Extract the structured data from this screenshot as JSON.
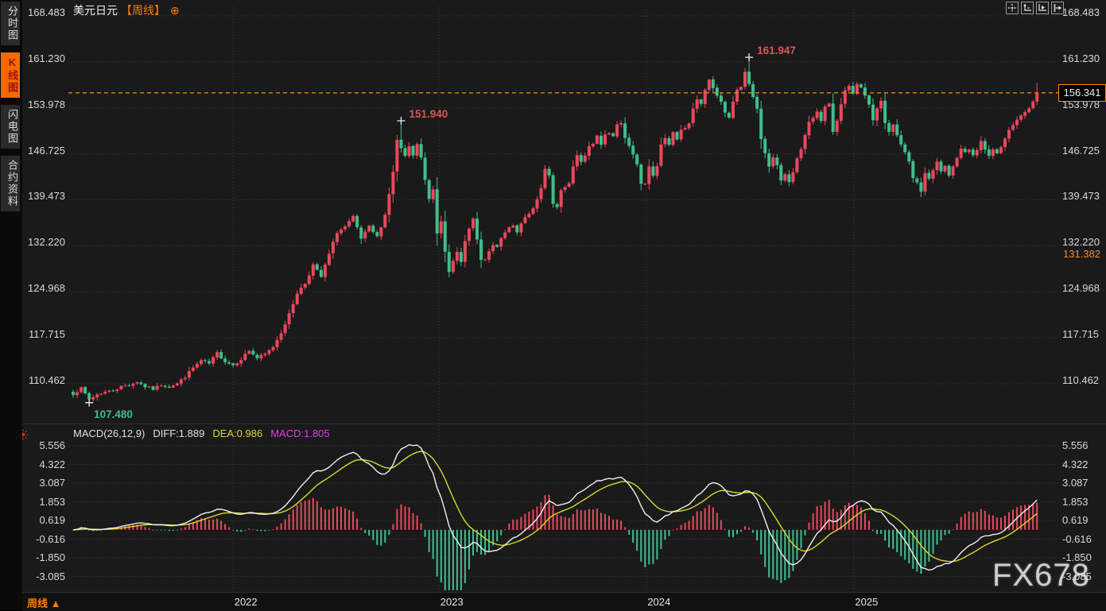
{
  "header": {
    "symbol": "美元日元",
    "period_tag": "【周线】",
    "add_icon": "⊕"
  },
  "sidebar": {
    "items": [
      {
        "key": "time-chart",
        "label": "分时图",
        "active": false
      },
      {
        "key": "candle-chart",
        "label": "K线图",
        "active": true
      },
      {
        "key": "flash-chart",
        "label": "闪电图",
        "active": false
      },
      {
        "key": "contract-info",
        "label": "合约资料",
        "active": false
      }
    ]
  },
  "toolbar": {
    "icons": [
      "crosshair-pan-icon",
      "axis-scale-up-icon",
      "axis-play-icon",
      "snap-latest-icon"
    ]
  },
  "footer": {
    "period_label": "周线",
    "arrow": "▲"
  },
  "watermark": "FX678",
  "live_dot_icon": "red-flash-marker",
  "macd_header": {
    "name": "MACD(26,12,9)",
    "diff": "DIFF:1.889",
    "dea": "DEA:0.986",
    "macd": "MACD:1.805"
  },
  "price_line_label": "156.341",
  "reference_label": "131.382",
  "colors": {
    "up": "#e8485f",
    "down": "#41bd8b",
    "grid": "#3c3c3c",
    "axis_text": "#d9d9d9",
    "orange": "#ff8e00",
    "diff_line": "#f0f0f0",
    "dea_line": "#d9d92b",
    "annotation_high": "#d95757",
    "annotation_low": "#41bd8b",
    "cross": "#f0f0f0",
    "chart_bg": "#1a1a1a"
  },
  "chart_data": {
    "type": "candlestick",
    "symbol": "美元日元 (USD/JPY)",
    "timeframe": "weekly",
    "price_axis_ticks": [
      168.483,
      161.23,
      153.978,
      146.725,
      139.473,
      132.22,
      124.968,
      117.715,
      110.462
    ],
    "macd_axis_ticks": [
      5.556,
      4.322,
      3.087,
      1.853,
      0.619,
      -0.616,
      -1.85,
      -3.085
    ],
    "years": [
      {
        "label": "2022",
        "week": 40
      },
      {
        "label": "2023",
        "week": 91.5
      },
      {
        "label": "2024",
        "week": 143.3
      },
      {
        "label": "2025",
        "week": 195.2
      }
    ],
    "current_price": 156.341,
    "reference_price": 131.382,
    "macd": {
      "params": [
        26,
        12,
        9
      ],
      "diff": 1.889,
      "dea": 0.986,
      "macd": 1.805
    },
    "weeks_total": 242,
    "anchors": [
      [
        0,
        108.9
      ],
      [
        2,
        109.7
      ],
      [
        4,
        108.0
      ],
      [
        6,
        108.8
      ],
      [
        8,
        109.2
      ],
      [
        10,
        109.4
      ],
      [
        12,
        110.0
      ],
      [
        14,
        110.3
      ],
      [
        16,
        110.8
      ],
      [
        18,
        110.0
      ],
      [
        20,
        109.6
      ],
      [
        22,
        110.3
      ],
      [
        24,
        110.0
      ],
      [
        26,
        110.5
      ],
      [
        28,
        111.6
      ],
      [
        30,
        113.0
      ],
      [
        32,
        114.1
      ],
      [
        34,
        113.6
      ],
      [
        36,
        115.3
      ],
      [
        38,
        114.0
      ],
      [
        40,
        113.4
      ],
      [
        42,
        114.4
      ],
      [
        44,
        115.7
      ],
      [
        46,
        114.5
      ],
      [
        48,
        115.1
      ],
      [
        50,
        116.3
      ],
      [
        52,
        118.6
      ],
      [
        54,
        121.4
      ],
      [
        56,
        124.8
      ],
      [
        58,
        126.3
      ],
      [
        60,
        129.2
      ],
      [
        62,
        127.3
      ],
      [
        64,
        130.9
      ],
      [
        66,
        134.4
      ],
      [
        68,
        135.2
      ],
      [
        70,
        136.7
      ],
      [
        72,
        133.3
      ],
      [
        74,
        135.2
      ],
      [
        76,
        133.6
      ],
      [
        78,
        137.1
      ],
      [
        80,
        143.8
      ],
      [
        81,
        148.9
      ],
      [
        82,
        147.5
      ],
      [
        83,
        146.2
      ],
      [
        84,
        147.9
      ],
      [
        85,
        146.3
      ],
      [
        86,
        148.3
      ],
      [
        87,
        146.1
      ],
      [
        88,
        142.5
      ],
      [
        89,
        139.6
      ],
      [
        90,
        141.2
      ],
      [
        91,
        134.3
      ],
      [
        92,
        136.3
      ],
      [
        93,
        131.5
      ],
      [
        94,
        127.9
      ],
      [
        95,
        129.7
      ],
      [
        96,
        131.2
      ],
      [
        97,
        129.9
      ],
      [
        98,
        132.9
      ],
      [
        99,
        134.9
      ],
      [
        100,
        136.4
      ],
      [
        101,
        133.0
      ],
      [
        102,
        130.1
      ],
      [
        103,
        129.8
      ],
      [
        104,
        131.3
      ],
      [
        105,
        132.2
      ],
      [
        106,
        132.0
      ],
      [
        107,
        133.3
      ],
      [
        108,
        134.5
      ],
      [
        109,
        134.9
      ],
      [
        110,
        135.4
      ],
      [
        111,
        134.3
      ],
      [
        112,
        135.9
      ],
      [
        113,
        136.8
      ],
      [
        114,
        137.4
      ],
      [
        115,
        138.0
      ],
      [
        116,
        139.4
      ],
      [
        117,
        141.2
      ],
      [
        118,
        144.3
      ],
      [
        119,
        143.1
      ],
      [
        120,
        138.8
      ],
      [
        121,
        138.2
      ],
      [
        122,
        140.8
      ],
      [
        123,
        141.5
      ],
      [
        124,
        142.2
      ],
      [
        125,
        144.7
      ],
      [
        126,
        146.4
      ],
      [
        127,
        145.3
      ],
      [
        128,
        146.6
      ],
      [
        129,
        147.9
      ],
      [
        130,
        148.3
      ],
      [
        131,
        149.6
      ],
      [
        132,
        148.3
      ],
      [
        133,
        149.9
      ],
      [
        134,
        150.0
      ],
      [
        135,
        149.5
      ],
      [
        136,
        151.5
      ],
      [
        137,
        151.8
      ],
      [
        138,
        149.4
      ],
      [
        139,
        148.2
      ],
      [
        140,
        146.8
      ],
      [
        141,
        144.9
      ],
      [
        142,
        141.8
      ],
      [
        143,
        142.2
      ],
      [
        144,
        144.9
      ],
      [
        145,
        143.3
      ],
      [
        146,
        144.8
      ],
      [
        147,
        148.1
      ],
      [
        148,
        149.3
      ],
      [
        149,
        148.2
      ],
      [
        150,
        150.0
      ],
      [
        151,
        148.9
      ],
      [
        152,
        150.4
      ],
      [
        153,
        150.8
      ],
      [
        154,
        151.4
      ],
      [
        155,
        153.9
      ],
      [
        156,
        155.3
      ],
      [
        157,
        154.7
      ],
      [
        158,
        156.8
      ],
      [
        159,
        158.3
      ],
      [
        160,
        157.3
      ],
      [
        161,
        156.0
      ],
      [
        162,
        154.8
      ],
      [
        163,
        153.1
      ],
      [
        164,
        152.3
      ],
      [
        165,
        155.0
      ],
      [
        166,
        156.9
      ],
      [
        167,
        157.1
      ],
      [
        168,
        159.8
      ],
      [
        169,
        157.8
      ],
      [
        170,
        155.7
      ],
      [
        171,
        153.7
      ],
      [
        172,
        149.1
      ],
      [
        173,
        146.6
      ],
      [
        174,
        144.7
      ],
      [
        175,
        146.2
      ],
      [
        176,
        145.0
      ],
      [
        177,
        142.5
      ],
      [
        178,
        143.6
      ],
      [
        179,
        142.1
      ],
      [
        180,
        143.8
      ],
      [
        181,
        145.8
      ],
      [
        182,
        147.3
      ],
      [
        183,
        149.7
      ],
      [
        184,
        151.8
      ],
      [
        185,
        152.3
      ],
      [
        186,
        153.2
      ],
      [
        187,
        151.9
      ],
      [
        188,
        154.1
      ],
      [
        189,
        154.8
      ],
      [
        190,
        150.1
      ],
      [
        191,
        152.0
      ],
      [
        192,
        154.5
      ],
      [
        193,
        156.6
      ],
      [
        194,
        157.5
      ],
      [
        195,
        156.3
      ],
      [
        196,
        157.9
      ],
      [
        197,
        157.1
      ],
      [
        198,
        155.8
      ],
      [
        199,
        154.3
      ],
      [
        200,
        152.1
      ],
      [
        201,
        154.0
      ],
      [
        202,
        155.3
      ],
      [
        203,
        151.5
      ],
      [
        204,
        150.0
      ],
      [
        205,
        151.2
      ],
      [
        206,
        149.5
      ],
      [
        207,
        148.0
      ],
      [
        208,
        147.1
      ],
      [
        209,
        145.3
      ],
      [
        210,
        143.0
      ],
      [
        211,
        142.2
      ],
      [
        212,
        140.8
      ],
      [
        213,
        143.6
      ],
      [
        214,
        142.7
      ],
      [
        215,
        144.1
      ],
      [
        216,
        145.4
      ],
      [
        217,
        143.9
      ],
      [
        218,
        144.8
      ],
      [
        219,
        143.4
      ],
      [
        220,
        144.6
      ],
      [
        221,
        146.1
      ],
      [
        222,
        147.7
      ],
      [
        223,
        146.9
      ],
      [
        224,
        147.4
      ],
      [
        225,
        146.5
      ],
      [
        226,
        147.3
      ],
      [
        227,
        148.6
      ],
      [
        228,
        147.2
      ],
      [
        229,
        146.6
      ],
      [
        230,
        147.6
      ],
      [
        231,
        146.9
      ],
      [
        232,
        147.8
      ],
      [
        233,
        149.2
      ],
      [
        234,
        150.3
      ],
      [
        235,
        151.1
      ],
      [
        236,
        152.1
      ],
      [
        237,
        152.6
      ],
      [
        238,
        153.4
      ],
      [
        239,
        153.9
      ],
      [
        240,
        154.8
      ],
      [
        241,
        156.341
      ]
    ],
    "extremes": {
      "4": {
        "low": 107.48
      },
      "82": {
        "high": 151.94
      },
      "94": {
        "low": 127.23
      },
      "168": {
        "high": 160.3
      },
      "169": {
        "high": 161.947
      },
      "212": {
        "low": 139.89
      },
      "241": {
        "high": 157.9
      }
    },
    "annotations": [
      {
        "text": "107.480",
        "week": 4,
        "price": 107.48,
        "kind": "low"
      },
      {
        "text": "151.940",
        "week": 82,
        "price": 151.94,
        "kind": "high"
      },
      {
        "text": "161.947",
        "week": 169,
        "price": 161.947,
        "kind": "high"
      }
    ]
  }
}
